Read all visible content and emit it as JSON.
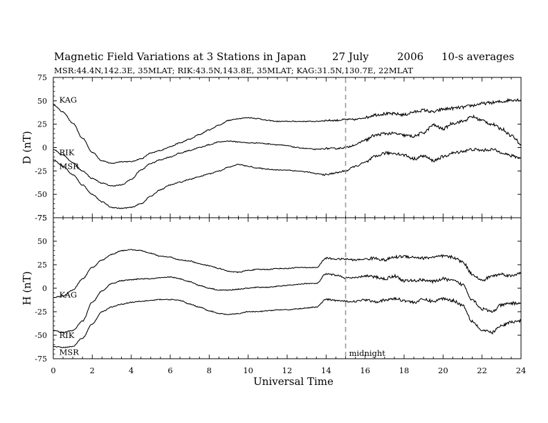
{
  "header": {
    "title": "Magnetic Field Variations at 3 Stations in Japan",
    "date": "27 July",
    "year": "2006",
    "averaging": "10-s averages",
    "stations_line": "MSR:44.4N,142.3E, 35MLAT;   RIK:43.5N,143.8E, 35MLAT;   KAG:31.5N,130.7E, 22MLAT"
  },
  "chart_data": [
    {
      "type": "line",
      "ylabel": "D (nT)",
      "ylim": [
        -75,
        75
      ],
      "yticks": [
        75,
        50,
        25,
        0,
        -25,
        -50,
        -75
      ],
      "xlim": [
        0,
        24
      ],
      "xticks": [
        0,
        2,
        4,
        6,
        8,
        10,
        12,
        14,
        16,
        18,
        20,
        22,
        24
      ],
      "xtick_labels": [
        "0",
        "2",
        "4",
        "6",
        "8",
        "10",
        "12",
        "14",
        "16",
        "18",
        "20",
        "22",
        "24"
      ],
      "x": [
        0,
        0.5,
        1,
        1.5,
        2,
        2.5,
        3,
        3.5,
        4,
        4.5,
        5,
        5.5,
        6,
        6.5,
        7,
        7.5,
        8,
        8.5,
        9,
        9.5,
        10,
        10.5,
        11,
        11.5,
        12,
        12.5,
        13,
        13.5,
        14,
        14.5,
        15,
        15.5,
        16,
        16.5,
        17,
        17.5,
        18,
        18.5,
        19,
        19.5,
        20,
        20.5,
        21,
        21.5,
        22,
        22.5,
        23,
        23.5,
        24
      ],
      "series": [
        {
          "name": "KAG",
          "values": [
            46,
            38,
            26,
            10,
            -5,
            -14,
            -17,
            -15,
            -15,
            -12,
            -6,
            -3,
            1,
            5,
            9,
            14,
            19,
            24,
            29,
            31,
            32,
            31,
            29,
            28,
            28,
            28,
            28,
            28,
            29,
            29,
            30,
            30,
            32,
            35,
            36,
            36,
            35,
            38,
            40,
            38,
            41,
            42,
            43,
            45,
            47,
            48,
            49,
            51,
            51
          ]
        },
        {
          "name": "RIK",
          "values": [
            -2,
            -8,
            -16,
            -25,
            -33,
            -38,
            -41,
            -40,
            -34,
            -24,
            -17,
            -13,
            -10,
            -6,
            -3,
            0,
            3,
            6,
            7,
            6,
            5,
            5,
            4,
            3,
            2,
            0,
            -1,
            -2,
            -1,
            -1,
            0,
            3,
            8,
            13,
            15,
            15,
            13,
            12,
            16,
            24,
            20,
            26,
            28,
            33,
            29,
            25,
            20,
            13,
            4
          ]
        },
        {
          "name": "MSR",
          "values": [
            -13,
            -20,
            -29,
            -40,
            -50,
            -58,
            -64,
            -65,
            -64,
            -60,
            -52,
            -45,
            -40,
            -37,
            -34,
            -31,
            -28,
            -25,
            -21,
            -18,
            -20,
            -22,
            -23,
            -24,
            -24,
            -25,
            -26,
            -28,
            -29,
            -27,
            -25,
            -20,
            -16,
            -10,
            -6,
            -6,
            -8,
            -12,
            -9,
            -14,
            -10,
            -6,
            -4,
            -2,
            -3,
            -2,
            -5,
            -9,
            -11
          ]
        }
      ],
      "series_labels": [
        {
          "series": "KAG",
          "x": 0.2,
          "y": 51
        },
        {
          "series": "RIK",
          "x": 0.2,
          "y": -5
        },
        {
          "series": "MSR",
          "x": 0.2,
          "y": -20
        }
      ]
    },
    {
      "type": "line",
      "ylabel": "H (nT)",
      "ylim": [
        -75,
        75
      ],
      "yticks": [
        75,
        50,
        25,
        0,
        -25,
        -50,
        -75
      ],
      "xlim": [
        0,
        24
      ],
      "xticks": [
        0,
        2,
        4,
        6,
        8,
        10,
        12,
        14,
        16,
        18,
        20,
        22,
        24
      ],
      "xtick_labels": [
        "0",
        "2",
        "4",
        "6",
        "8",
        "10",
        "12",
        "14",
        "16",
        "18",
        "20",
        "22",
        "24"
      ],
      "xlabel": "Universal Time",
      "x": [
        0,
        0.5,
        1,
        1.5,
        2,
        2.5,
        3,
        3.5,
        4,
        4.5,
        5,
        5.5,
        6,
        6.5,
        7,
        7.5,
        8,
        8.5,
        9,
        9.5,
        10,
        10.5,
        11,
        11.5,
        12,
        12.5,
        13,
        13.5,
        14,
        14.5,
        15,
        15.5,
        16,
        16.5,
        17,
        17.5,
        18,
        18.5,
        19,
        19.5,
        20,
        20.5,
        21,
        21.5,
        22,
        22.5,
        23,
        23.5,
        24
      ],
      "series": [
        {
          "name": "KAG",
          "values": [
            -10,
            -8,
            -2,
            10,
            22,
            30,
            36,
            40,
            41,
            40,
            37,
            34,
            33,
            30,
            29,
            26,
            24,
            21,
            18,
            17,
            19,
            20,
            20,
            21,
            21,
            22,
            22,
            22,
            32,
            31,
            31,
            30,
            31,
            32,
            30,
            33,
            34,
            33,
            32,
            33,
            34,
            33,
            28,
            15,
            8,
            13,
            15,
            13,
            17
          ]
        },
        {
          "name": "RIK",
          "values": [
            -45,
            -47,
            -45,
            -35,
            -15,
            -3,
            5,
            8,
            9,
            10,
            10,
            11,
            12,
            10,
            7,
            3,
            0,
            -2,
            -2,
            -1,
            0,
            1,
            1,
            2,
            3,
            4,
            5,
            5,
            15,
            14,
            11,
            11,
            13,
            12,
            10,
            13,
            8,
            8,
            9,
            7,
            10,
            8,
            4,
            -12,
            -22,
            -25,
            -18,
            -16,
            -16
          ]
        },
        {
          "name": "MSR",
          "values": [
            -62,
            -63,
            -62,
            -53,
            -38,
            -25,
            -20,
            -17,
            -15,
            -14,
            -13,
            -12,
            -12,
            -13,
            -17,
            -20,
            -24,
            -27,
            -28,
            -27,
            -25,
            -25,
            -24,
            -23,
            -23,
            -22,
            -21,
            -20,
            -12,
            -13,
            -14,
            -14,
            -12,
            -14,
            -13,
            -11,
            -13,
            -15,
            -12,
            -14,
            -11,
            -13,
            -18,
            -35,
            -45,
            -47,
            -40,
            -36,
            -35
          ]
        }
      ],
      "series_labels": [
        {
          "series": "KAG",
          "x": 0.2,
          "y": -7
        },
        {
          "series": "RIK",
          "x": 0.2,
          "y": -50
        },
        {
          "series": "MSR",
          "x": 0.2,
          "y": -68
        }
      ],
      "annotation": {
        "text": "midnight",
        "x": 15
      }
    }
  ],
  "midnight_marker_x": 15
}
